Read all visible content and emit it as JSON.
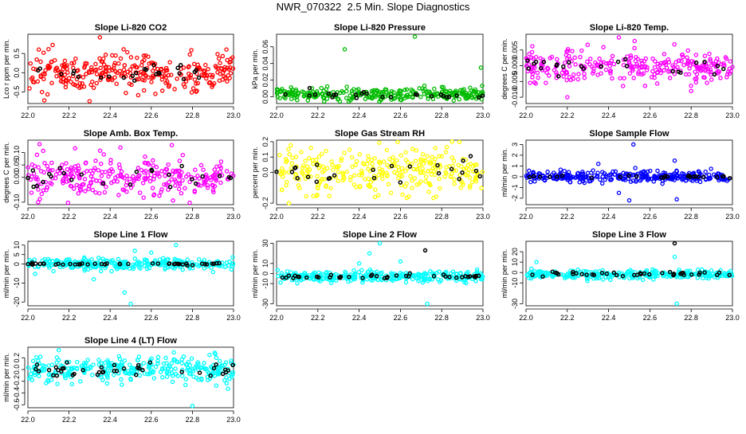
{
  "figure_title": "NWR_070322  2.5 Min. Slope Diagnostics",
  "chart_data": [
    {
      "type": "scatter",
      "title": "Slope Li-820 CO2",
      "ylabel": "Lco r ppm per min.",
      "xlim": [
        22.0,
        23.0
      ],
      "ylim": [
        -0.8,
        1.0
      ],
      "xticks": [
        "22.0",
        "22.2",
        "22.4",
        "22.6",
        "22.8",
        "23.0"
      ],
      "yticks": [
        "-0.5",
        "0.0",
        "0.5"
      ],
      "ytick_values": [
        -0.5,
        0.0,
        0.5
      ],
      "series": [
        {
          "color": "#ff0000",
          "center": 0.0,
          "spread": 0.45,
          "count": 300,
          "outliers": [
            [
              22.12,
              0.72
            ],
            [
              22.35,
              0.92
            ],
            [
              22.08,
              -0.72
            ],
            [
              22.62,
              -0.55
            ],
            [
              22.3,
              -0.74
            ]
          ]
        },
        {
          "color": "#000000",
          "center": 0.0,
          "spread": 0.22,
          "count": 25
        }
      ]
    },
    {
      "type": "scatter",
      "title": "Slope Li-820 Pressure",
      "ylabel": "kPa per min.",
      "xlim": [
        22.0,
        23.0
      ],
      "ylim": [
        -0.008,
        0.075
      ],
      "xticks": [
        "22.0",
        "22.2",
        "22.4",
        "22.6",
        "22.8",
        "23.0"
      ],
      "yticks": [
        "0.00",
        "0.02",
        "0.04",
        "0.06"
      ],
      "ytick_values": [
        0.0,
        0.02,
        0.04,
        0.06
      ],
      "series": [
        {
          "color": "#00bb00",
          "center": 0.003,
          "spread": 0.007,
          "count": 280,
          "outliers": [
            [
              22.33,
              0.057
            ],
            [
              22.67,
              0.072
            ],
            [
              22.99,
              0.035
            ],
            [
              22.1,
              -0.004
            ]
          ]
        },
        {
          "color": "#000000",
          "center": 0.002,
          "spread": 0.004,
          "count": 25
        }
      ]
    },
    {
      "type": "scatter",
      "title": "Slope Li-820 Temp.",
      "ylabel": "degrees C per min.",
      "xlim": [
        22.0,
        23.0
      ],
      "ylim": [
        -0.012,
        0.01
      ],
      "xticks": [
        "22.0",
        "22.2",
        "22.4",
        "22.6",
        "22.8",
        "23.0"
      ],
      "yticks": [
        "-0.010",
        "-0.005",
        "0.000",
        "0.005"
      ],
      "ytick_values": [
        -0.01,
        -0.005,
        0.0,
        0.005
      ],
      "series": [
        {
          "color": "#ff00ff",
          "center": 0.0,
          "spread": 0.005,
          "count": 280,
          "outliers": [
            [
              22.2,
              -0.01
            ],
            [
              22.45,
              0.009
            ],
            [
              22.8,
              -0.008
            ]
          ]
        },
        {
          "color": "#000000",
          "center": 0.0,
          "spread": 0.003,
          "count": 25
        }
      ]
    },
    {
      "type": "scatter",
      "title": "Slope Amb. Box Temp.",
      "ylabel": "degrees C per min.",
      "xlim": [
        22.0,
        23.0
      ],
      "ylim": [
        -0.11,
        0.15
      ],
      "xticks": [
        "22.0",
        "22.2",
        "22.4",
        "22.6",
        "22.8",
        "23.0"
      ],
      "yticks": [
        "-0.10",
        "0.00",
        "0.05",
        "0.10"
      ],
      "ytick_values": [
        -0.1,
        0.0,
        0.05,
        0.1
      ],
      "series": [
        {
          "color": "#ff00ff",
          "center": 0.0,
          "spread": 0.08,
          "count": 280,
          "outliers": [
            [
              22.7,
              0.13
            ],
            [
              22.05,
              -0.1
            ],
            [
              22.45,
              0.12
            ]
          ]
        },
        {
          "color": "#000000",
          "center": 0.0,
          "spread": 0.05,
          "count": 25
        }
      ]
    },
    {
      "type": "scatter",
      "title": "Slope Gas Stream RH",
      "ylabel": "percent per min.",
      "xlim": [
        22.0,
        23.0
      ],
      "ylim": [
        -0.21,
        0.21
      ],
      "xticks": [
        "22.0",
        "22.2",
        "22.4",
        "22.6",
        "22.8",
        "23.0"
      ],
      "yticks": [
        "-0.2",
        "0.0",
        "0.1",
        "0.2"
      ],
      "ytick_values": [
        -0.2,
        0.0,
        0.1,
        0.2
      ],
      "series": [
        {
          "color": "#ffff00",
          "center": 0.0,
          "spread": 0.14,
          "count": 300,
          "outliers": [
            [
              22.85,
              0.2
            ],
            [
              22.06,
              -0.2
            ]
          ]
        },
        {
          "color": "#000000",
          "center": 0.0,
          "spread": 0.08,
          "count": 25
        }
      ]
    },
    {
      "type": "scatter",
      "title": "Slope Sample Flow",
      "ylabel": "ml/min per min.",
      "xlim": [
        22.0,
        23.0
      ],
      "ylim": [
        -2.6,
        3.4
      ],
      "xticks": [
        "22.0",
        "22.2",
        "22.4",
        "22.6",
        "22.8",
        "23.0"
      ],
      "yticks": [
        "-2",
        "-1",
        "0",
        "1",
        "2",
        "3"
      ],
      "ytick_values": [
        -2,
        -1,
        0,
        1,
        2,
        3
      ],
      "series": [
        {
          "color": "#0000ff",
          "center": 0.0,
          "spread": 0.5,
          "count": 300,
          "outliers": [
            [
              22.52,
              3.0
            ],
            [
              22.72,
              1.5
            ],
            [
              22.5,
              -2.2
            ],
            [
              22.73,
              -2.1
            ],
            [
              22.35,
              1.2
            ],
            [
              22.45,
              -1.5
            ]
          ]
        },
        {
          "color": "#000000",
          "center": 0.0,
          "spread": 0.12,
          "count": 25
        }
      ]
    },
    {
      "type": "scatter",
      "title": "Slope Line 1 Flow",
      "ylabel": "ml/min per min.",
      "xlim": [
        22.0,
        23.0
      ],
      "ylim": [
        -22,
        12
      ],
      "xticks": [
        "22.0",
        "22.2",
        "22.4",
        "22.6",
        "22.8",
        "23.0"
      ],
      "yticks": [
        "-20",
        "-10",
        "0",
        "5",
        "10"
      ],
      "ytick_values": [
        -20,
        -10,
        0,
        5,
        10
      ],
      "series": [
        {
          "color": "#00ffff",
          "center": 0.0,
          "spread": 3.0,
          "count": 300,
          "outliers": [
            [
              22.5,
              -21
            ],
            [
              22.47,
              -15
            ],
            [
              22.52,
              7
            ],
            [
              22.72,
              10
            ],
            [
              22.32,
              -8
            ],
            [
              22.6,
              6
            ]
          ]
        },
        {
          "color": "#000000",
          "center": 0.0,
          "spread": 0.6,
          "count": 45
        }
      ]
    },
    {
      "type": "scatter",
      "title": "Slope Line 2 Flow",
      "ylabel": "ml/min per min.",
      "xlim": [
        22.0,
        23.0
      ],
      "ylim": [
        -32,
        32
      ],
      "xticks": [
        "22.0",
        "22.2",
        "22.4",
        "22.6",
        "22.8",
        "23.0"
      ],
      "yticks": [
        "-30",
        "-10",
        "0",
        "10",
        "30"
      ],
      "ytick_values": [
        -30,
        -10,
        0,
        10,
        30
      ],
      "series": [
        {
          "color": "#00ffff",
          "center": -3.0,
          "spread": 5.0,
          "count": 300,
          "outliers": [
            [
              22.5,
              30
            ],
            [
              22.45,
              20
            ],
            [
              22.73,
              -30
            ],
            [
              22.6,
              12
            ],
            [
              22.4,
              10
            ]
          ]
        },
        {
          "color": "#000000",
          "center": -3.0,
          "spread": 2.0,
          "count": 40,
          "outliers": [
            [
              22.72,
              23
            ]
          ]
        }
      ]
    },
    {
      "type": "scatter",
      "title": "Slope Line 3 Flow",
      "ylabel": "ml/min per min.",
      "xlim": [
        22.0,
        23.0
      ],
      "ylim": [
        -32,
        30
      ],
      "xticks": [
        "22.0",
        "22.2",
        "22.4",
        "22.6",
        "22.8",
        "23.0"
      ],
      "yticks": [
        "-30",
        "-10",
        "0",
        "10",
        "20"
      ],
      "ytick_values": [
        -30,
        -10,
        0,
        10,
        20
      ],
      "series": [
        {
          "color": "#00ffff",
          "center": -2.0,
          "spread": 4.0,
          "count": 300,
          "outliers": [
            [
              22.73,
              -30
            ],
            [
              22.72,
              15
            ],
            [
              22.05,
              10
            ]
          ]
        },
        {
          "color": "#000000",
          "center": -1.5,
          "spread": 1.8,
          "count": 40,
          "outliers": [
            [
              22.72,
              28
            ]
          ]
        }
      ]
    },
    {
      "type": "scatter",
      "title": "Slope Line 4 (LT) Flow",
      "ylabel": "ml/min per min.",
      "xlim": [
        22.0,
        23.0
      ],
      "ylim": [
        -0.65,
        0.38
      ],
      "xticks": [
        "22.0",
        "22.2",
        "22.4",
        "22.6",
        "22.8",
        "23.0"
      ],
      "yticks": [
        "-0.6",
        "-0.4",
        "-0.2",
        "0.0",
        "0.2"
      ],
      "ytick_values": [
        -0.6,
        -0.4,
        -0.2,
        0.0,
        0.2
      ],
      "series": [
        {
          "color": "#00ffff",
          "center": 0.0,
          "spread": 0.22,
          "count": 300,
          "outliers": [
            [
              22.8,
              -0.62
            ],
            [
              22.15,
              0.33
            ]
          ]
        },
        {
          "color": "#000000",
          "center": 0.0,
          "spread": 0.15,
          "count": 40
        }
      ]
    }
  ]
}
